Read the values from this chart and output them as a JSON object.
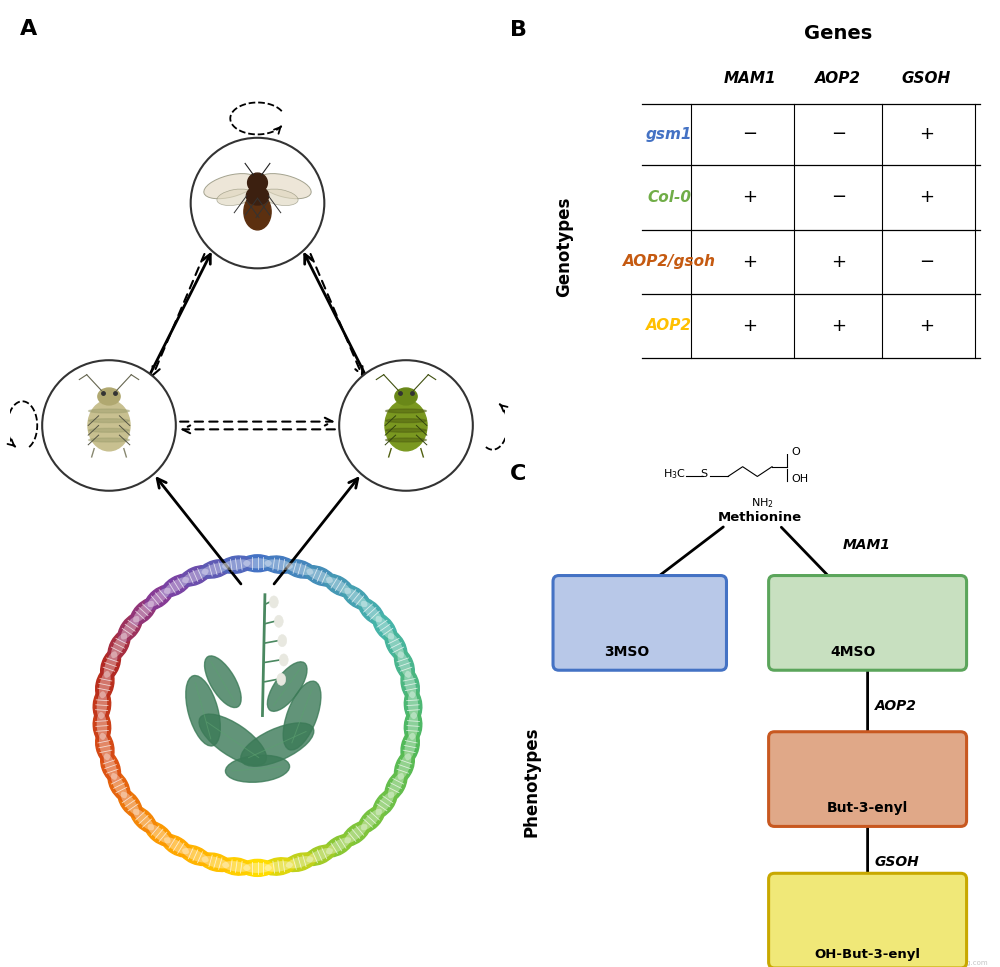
{
  "panel_A_label": "A",
  "panel_B_label": "B",
  "panel_C_label": "C",
  "table_title": "Genes",
  "table_col_headers": [
    "MAM1",
    "AOP2",
    "GSOH"
  ],
  "table_row_labels": [
    "gsm1",
    "Col-0",
    "AOP2/gsoh",
    "AOP2"
  ],
  "table_row_colors": [
    "#4472C4",
    "#70AD47",
    "#C55A11",
    "#FFC000"
  ],
  "table_data": [
    [
      "−",
      "−",
      "+"
    ],
    [
      "+",
      "−",
      "+"
    ],
    [
      "+",
      "+",
      "−"
    ],
    [
      "+",
      "+",
      "+"
    ]
  ],
  "genotypes_label": "Genotypes",
  "phenotypes_label": "Phenotypes",
  "compound_labels": [
    "3MSO",
    "4MSO",
    "But-3-enyl",
    "OH-But-3-enyl"
  ],
  "compound_colors": [
    "#B8C8E8",
    "#C8E0C0",
    "#E0A888",
    "#F0E878"
  ],
  "compound_border_colors": [
    "#4472C4",
    "#5BA55B",
    "#C85820",
    "#C8A800"
  ],
  "methionine_label": "Methionine",
  "enzyme_labels": [
    "MAM1",
    "AOP2",
    "GSOH"
  ],
  "background_color": "#FFFFFF",
  "dna_colors_start": [
    "#4472C4",
    "#4C86C8",
    "#549ACC",
    "#5CAED0",
    "#64C2D4",
    "#6CC8D0",
    "#70C8C0",
    "#70C8B0",
    "#70C8A0",
    "#6EC890",
    "#6CC880",
    "#6AB870",
    "#68A860",
    "#66A050",
    "#80B040",
    "#98C038",
    "#B0C830",
    "#C8CC28",
    "#E0C820",
    "#F0C018",
    "#F8B010",
    "#F8A008",
    "#F89000",
    "#F87800",
    "#F06000",
    "#E85000",
    "#E04000",
    "#D83800",
    "#D03000",
    "#C83000",
    "#C03800",
    "#B84000",
    "#B84800",
    "#B05000",
    "#A86000",
    "#A87020",
    "#A88040",
    "#B09060",
    "#C0A870",
    "#D0B860",
    "#E0C840",
    "#F0D820",
    "#F8E010",
    "#F8E820",
    "#F0E840",
    "#D8D060",
    "#B8B880",
    "#90A0A0"
  ]
}
